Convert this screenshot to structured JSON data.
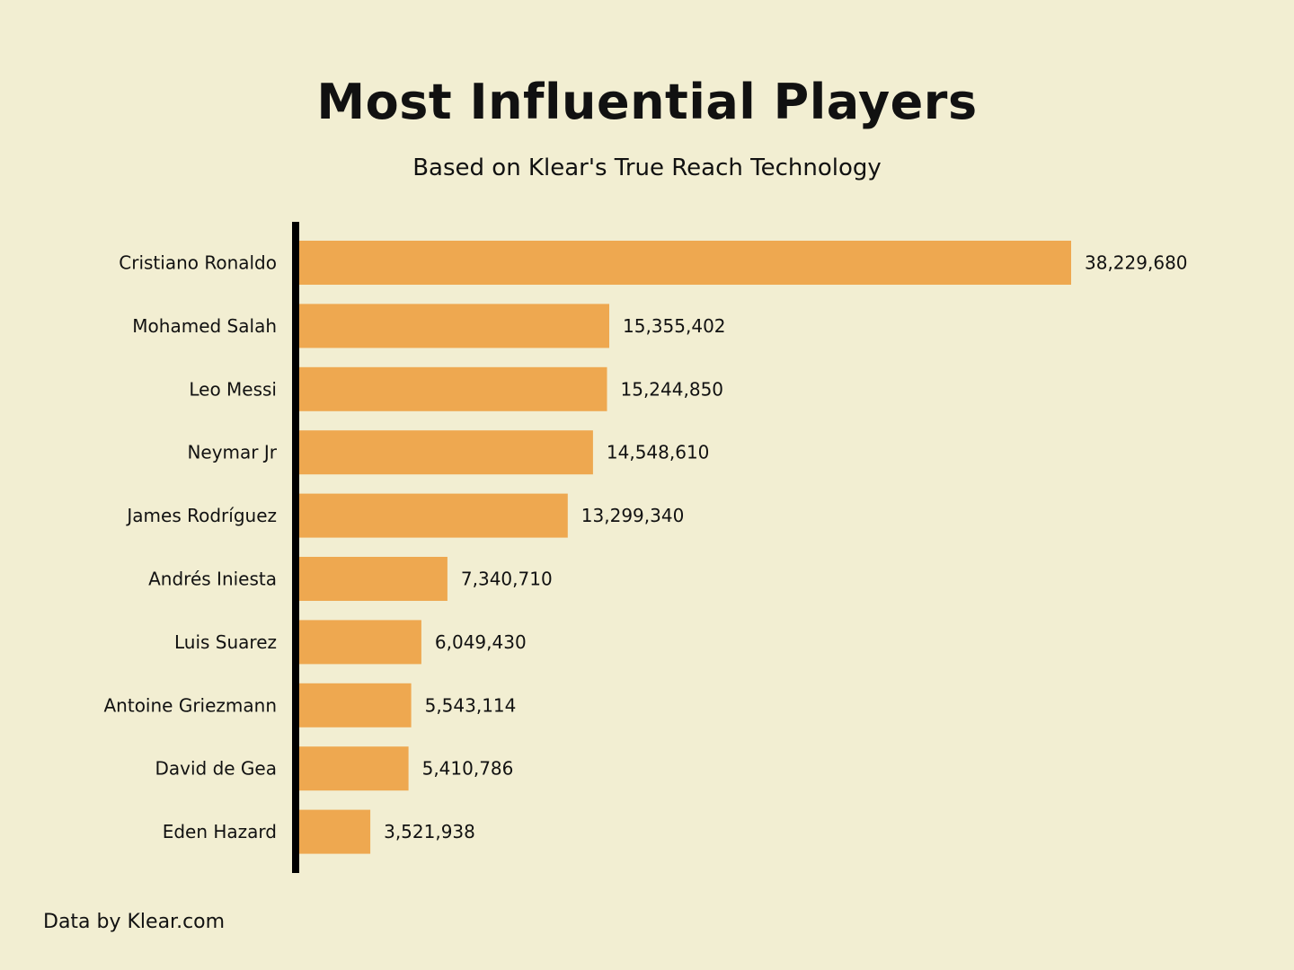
{
  "colors": {
    "background": "#f2eed2",
    "bar": "#eea850",
    "axis": "#000000",
    "text": "#111111"
  },
  "chart_data": {
    "type": "bar",
    "orientation": "horizontal",
    "title": "Most Influential Players",
    "subtitle": "Based on Klear's True Reach Technology",
    "categories": [
      "Cristiano Ronaldo",
      "Mohamed Salah",
      "Leo Messi",
      "Neymar Jr",
      "James Rodríguez",
      "Andrés Iniesta",
      "Luis Suarez",
      "Antoine Griezmann",
      "David de Gea",
      "Eden Hazard"
    ],
    "values": [
      38229680,
      15355402,
      15244850,
      14548610,
      13299340,
      7340710,
      6049430,
      5543114,
      5410786,
      3521938
    ],
    "value_labels": [
      "38,229,680",
      "15,355,402",
      "15,244,850",
      "14,548,610",
      "13,299,340",
      "7,340,710",
      "6,049,430",
      "5,543,114",
      "5,410,786",
      "3,521,938"
    ],
    "xlim": [
      0,
      38229680
    ],
    "grid": false,
    "legend": "none"
  },
  "footer": {
    "source": "Data by Klear.com"
  }
}
